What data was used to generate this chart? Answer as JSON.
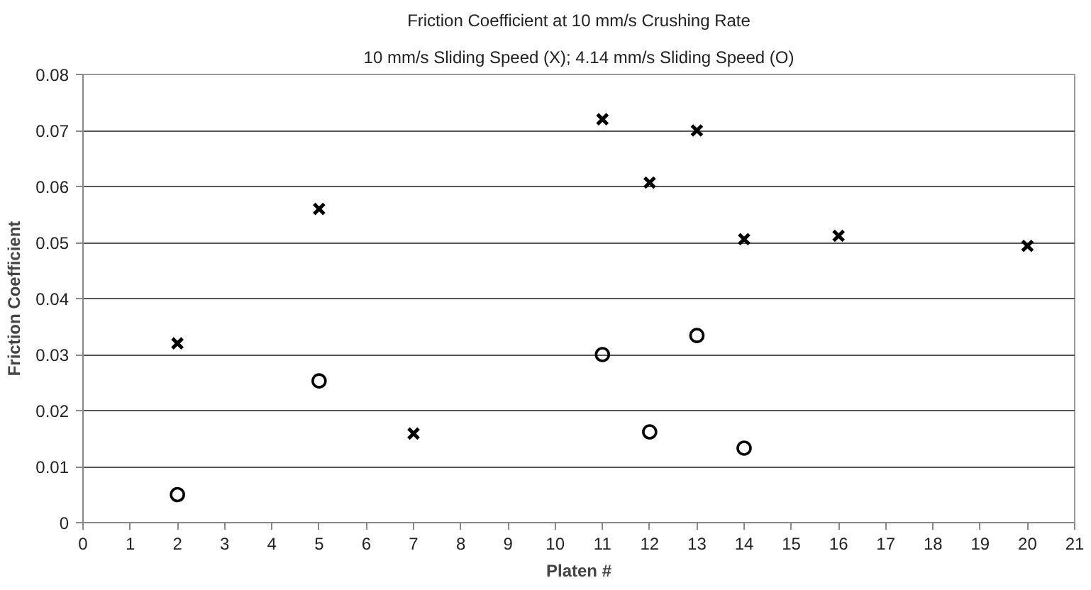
{
  "chart_data": {
    "type": "scatter",
    "title": "Friction Coefficient at 10 mm/s Crushing Rate",
    "subtitle": "10 mm/s Sliding Speed (X); 4.14 mm/s Sliding Speed (O)",
    "xlabel": "Platen #",
    "ylabel": "Friction Coefficient",
    "series": [
      {
        "color": "#000000",
        "marker": "cross",
        "x": [
          2,
          5,
          7,
          11,
          12,
          13,
          14,
          16,
          20
        ],
        "values": [
          0.032,
          0.056,
          0.0159,
          0.072,
          0.0607,
          0.07,
          0.0506,
          0.0512,
          0.0494
        ]
      },
      {
        "color": "#000000",
        "marker": "circle",
        "x": [
          2,
          5,
          11,
          12,
          13,
          14
        ],
        "values": [
          0.005,
          0.0253,
          0.03,
          0.0162,
          0.0334,
          0.0133
        ]
      }
    ],
    "xlim": [
      0,
      21
    ],
    "xticks": [
      0,
      1,
      2,
      3,
      4,
      5,
      6,
      7,
      8,
      9,
      10,
      11,
      12,
      13,
      14,
      15,
      16,
      17,
      18,
      19,
      20,
      21
    ],
    "ylim": [
      0,
      0.08
    ],
    "yticks": [
      0,
      0.01,
      0.02,
      0.03,
      0.04,
      0.05,
      0.06,
      0.07,
      0.08
    ],
    "grid": "y"
  }
}
